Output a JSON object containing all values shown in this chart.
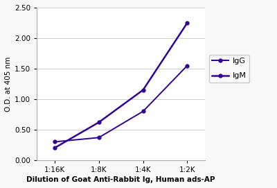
{
  "x_positions": [
    0,
    1,
    2,
    3
  ],
  "x_labels": [
    "1:16K",
    "1:8K",
    "1:4K",
    "1:2K"
  ],
  "IgG_values": [
    0.3,
    0.37,
    0.8,
    1.55
  ],
  "IgM_values": [
    0.2,
    0.62,
    1.15,
    2.25
  ],
  "line_color": "#330099",
  "ylabel": "O.D. at 405 nm",
  "xlabel": "Dilution of Goat Anti-Rabbit Ig, Human ads-AP",
  "ylim": [
    0.0,
    2.5
  ],
  "yticks": [
    0.0,
    0.5,
    1.0,
    1.5,
    2.0,
    2.5
  ],
  "legend_labels": [
    "IgG",
    "IgM"
  ],
  "axis_fontsize": 7.5,
  "tick_fontsize": 7.5,
  "legend_fontsize": 8,
  "xlabel_fontsize": 7.5,
  "background_color": "#f8f8f8",
  "plot_bg_color": "#ffffff"
}
